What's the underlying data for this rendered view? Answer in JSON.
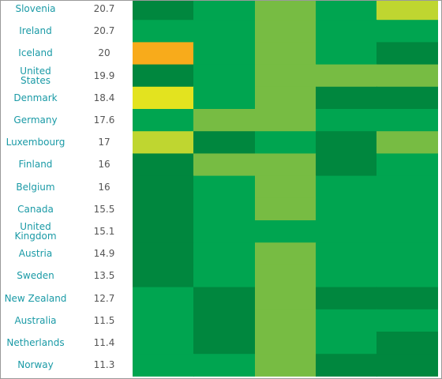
{
  "chart_data": {
    "type": "heatmap",
    "rows": [
      {
        "country": "Slovenia",
        "value": "20.7",
        "cells": [
          "dark",
          "med",
          "light",
          "med",
          "yellow"
        ]
      },
      {
        "country": "Ireland",
        "value": "20.7",
        "cells": [
          "med",
          "med",
          "light",
          "med",
          "med"
        ]
      },
      {
        "country": "Iceland",
        "value": "20",
        "cells": [
          "orange",
          "med",
          "light",
          "med",
          "dark"
        ]
      },
      {
        "country": "United States",
        "value": "19.9",
        "cells": [
          "dark",
          "med",
          "light",
          "light",
          "light"
        ]
      },
      {
        "country": "Denmark",
        "value": "18.4",
        "cells": [
          "bright-yellow",
          "med",
          "light",
          "dark",
          "dark"
        ]
      },
      {
        "country": "Germany",
        "value": "17.6",
        "cells": [
          "med",
          "light",
          "light",
          "med",
          "med"
        ]
      },
      {
        "country": "Luxembourg",
        "value": "17",
        "cells": [
          "yellow",
          "dark",
          "med",
          "dark",
          "light"
        ]
      },
      {
        "country": "Finland",
        "value": "16",
        "cells": [
          "dark",
          "light",
          "light",
          "dark",
          "med"
        ]
      },
      {
        "country": "Belgium",
        "value": "16",
        "cells": [
          "dark",
          "med",
          "light",
          "med",
          "med"
        ]
      },
      {
        "country": "Canada",
        "value": "15.5",
        "cells": [
          "dark",
          "med",
          "light",
          "med",
          "med"
        ]
      },
      {
        "country": "United Kingdom",
        "value": "15.1",
        "cells": [
          "dark",
          "med",
          "med",
          "med",
          "med"
        ]
      },
      {
        "country": "Austria",
        "value": "14.9",
        "cells": [
          "dark",
          "med",
          "light",
          "med",
          "med"
        ]
      },
      {
        "country": "Sweden",
        "value": "13.5",
        "cells": [
          "dark",
          "med",
          "light",
          "med",
          "med"
        ]
      },
      {
        "country": "New Zealand",
        "value": "12.7",
        "cells": [
          "med",
          "dark",
          "light",
          "dark",
          "dark"
        ]
      },
      {
        "country": "Australia",
        "value": "11.5",
        "cells": [
          "med",
          "dark",
          "light",
          "med",
          "med"
        ]
      },
      {
        "country": "Netherlands",
        "value": "11.4",
        "cells": [
          "med",
          "dark",
          "light",
          "med",
          "dark"
        ]
      },
      {
        "country": "Norway",
        "value": "11.3",
        "cells": [
          "med",
          "med",
          "light",
          "dark",
          "dark"
        ]
      }
    ]
  },
  "colors": {
    "dark": "#00873e",
    "med": "#00a550",
    "light": "#77bc43",
    "yellow": "#bfd630",
    "bright-yellow": "#e3e31f",
    "orange": "#f8ab1b",
    "label_text": "#1a9aa6",
    "value_text": "#555555"
  }
}
